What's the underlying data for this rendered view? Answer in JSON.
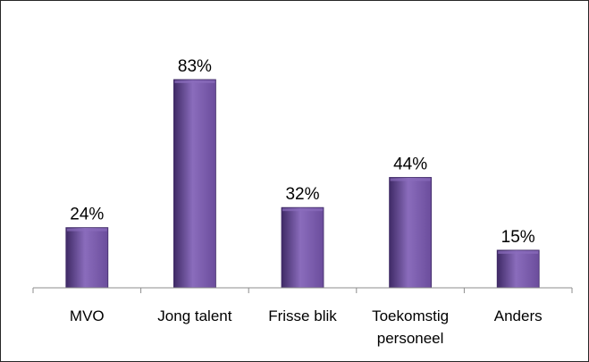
{
  "chart_data": {
    "type": "bar",
    "categories": [
      "MVO",
      "Jong talent",
      "Frisse blik",
      "Toekomstig personeel",
      "Anders"
    ],
    "category_lines": [
      [
        "MVO"
      ],
      [
        "Jong talent"
      ],
      [
        "Frisse blik"
      ],
      [
        "Toekomstig",
        "personeel"
      ],
      [
        "Anders"
      ]
    ],
    "values": [
      24,
      83,
      32,
      44,
      15
    ],
    "data_labels": [
      "24%",
      "83%",
      "32%",
      "44%",
      "15%"
    ],
    "ylim": [
      0,
      100
    ],
    "grid": false,
    "legend": "none",
    "colors": {
      "bar_dark": "#3f2a66",
      "bar_mid": "#6b4d9c",
      "bar_light": "#8a6cbc",
      "axis": "#8c8c8c",
      "border": "#262626"
    }
  }
}
